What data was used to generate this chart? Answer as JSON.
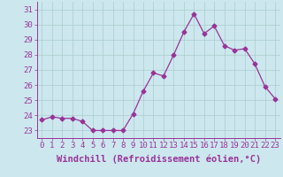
{
  "x": [
    0,
    1,
    2,
    3,
    4,
    5,
    6,
    7,
    8,
    9,
    10,
    11,
    12,
    13,
    14,
    15,
    16,
    17,
    18,
    19,
    20,
    21,
    22,
    23
  ],
  "y": [
    23.7,
    23.9,
    23.8,
    23.8,
    23.6,
    23.0,
    23.0,
    23.0,
    23.0,
    24.1,
    25.6,
    26.8,
    26.6,
    28.0,
    29.5,
    30.7,
    29.4,
    29.9,
    28.6,
    28.3,
    28.4,
    27.4,
    25.9,
    25.1
  ],
  "line_color": "#993399",
  "marker": "D",
  "marker_size": 2.5,
  "bg_color": "#cce8ee",
  "grid_color": "#aacccc",
  "axis_color": "#993399",
  "xlabel": "Windchill (Refroidissement éolien,°C)",
  "ylabel_ticks": [
    23,
    24,
    25,
    26,
    27,
    28,
    29,
    30,
    31
  ],
  "xlim": [
    -0.5,
    23.5
  ],
  "ylim": [
    22.5,
    31.5
  ],
  "xticks": [
    0,
    1,
    2,
    3,
    4,
    5,
    6,
    7,
    8,
    9,
    10,
    11,
    12,
    13,
    14,
    15,
    16,
    17,
    18,
    19,
    20,
    21,
    22,
    23
  ],
  "tick_label_fontsize": 6.5,
  "xlabel_fontsize": 7.5
}
